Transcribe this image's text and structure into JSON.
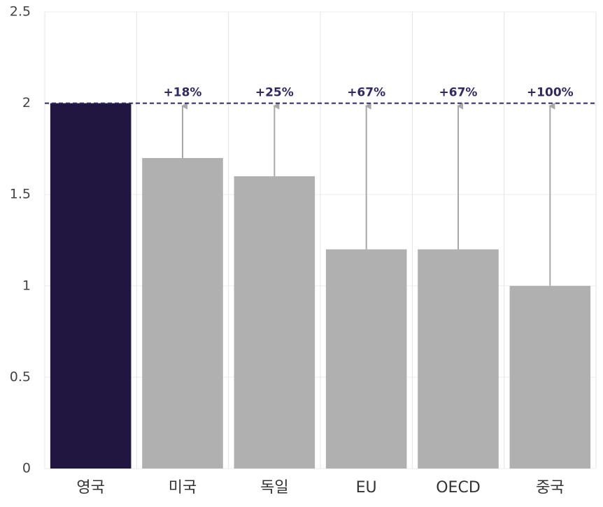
{
  "chart_data": {
    "type": "bar",
    "categories": [
      "영국",
      "미국",
      "독일",
      "EU",
      "OECD",
      "중국"
    ],
    "values": [
      2,
      1.7,
      1.6,
      1.2,
      1.2,
      1
    ],
    "colors": [
      "#20163f",
      "#b0b0b0",
      "#b0b0b0",
      "#b0b0b0",
      "#b0b0b0",
      "#b0b0b0"
    ],
    "annotations": [
      null,
      "+18%",
      "+25%",
      "+67%",
      "+67%",
      "+100%"
    ],
    "reference_line": 2,
    "reference_color": "#2f2a66",
    "ylim": [
      0,
      2.5
    ],
    "yticks": [
      0,
      0.5,
      1,
      1.5,
      2,
      2.5
    ],
    "grid": true
  }
}
